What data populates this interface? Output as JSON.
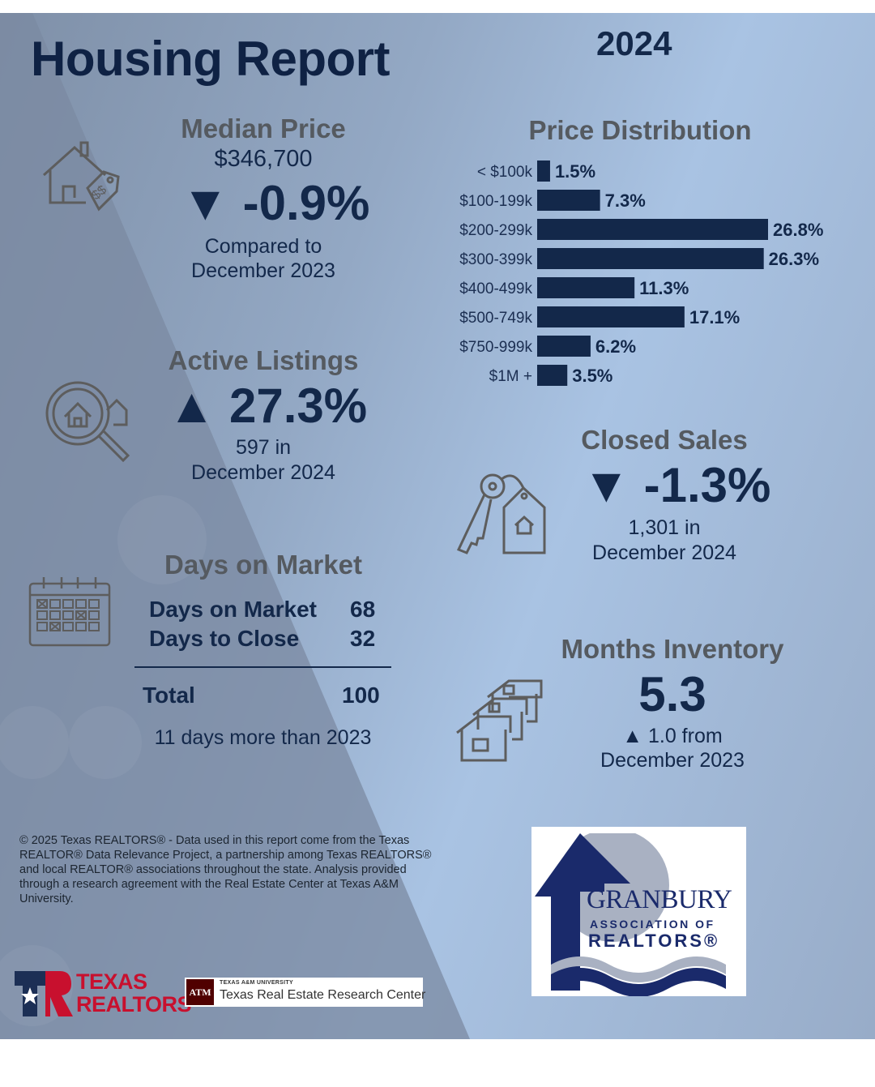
{
  "header": {
    "title": "Housing Report",
    "year": "2024"
  },
  "median_price": {
    "heading": "Median Price",
    "value": "$346,700",
    "arrow": "▼",
    "change": "-0.9%",
    "note_line1": "Compared to",
    "note_line2": "December 2023",
    "icon": "house-price-tag-icon"
  },
  "active_listings": {
    "heading": "Active Listings",
    "arrow": "▲",
    "change": "27.3%",
    "note_line1": "597 in",
    "note_line2": "December 2024",
    "icon": "magnifier-house-icon"
  },
  "days_on_market": {
    "heading": "Days on Market",
    "rows": [
      {
        "label": "Days on Market",
        "value": "68"
      },
      {
        "label": "Days to Close",
        "value": "32"
      }
    ],
    "total_label": "Total",
    "total_value": "100",
    "note": "11 days more than 2023",
    "icon": "calendar-icon"
  },
  "closed_sales": {
    "heading": "Closed Sales",
    "arrow": "▼",
    "change": "-1.3%",
    "note_line1": "1,301 in",
    "note_line2": "December 2024",
    "icon": "key-house-tag-icon"
  },
  "months_inventory": {
    "heading": "Months Inventory",
    "value": "5.3",
    "note_line1": "▲ 1.0 from",
    "note_line2": "December 2023",
    "icon": "stacked-houses-icon"
  },
  "chart_data": {
    "type": "bar",
    "orientation": "horizontal",
    "title": "Price Distribution",
    "categories": [
      "< $100k",
      "$100-199k",
      "$200-299k",
      "$300-399k",
      "$400-499k",
      "$500-749k",
      "$750-999k",
      "$1M +"
    ],
    "values": [
      1.5,
      7.3,
      26.8,
      26.3,
      11.3,
      17.1,
      6.2,
      3.5
    ],
    "value_labels": [
      "1.5%",
      "7.3%",
      "26.8%",
      "26.3%",
      "11.3%",
      "17.1%",
      "6.2%",
      "3.5%"
    ],
    "unit": "%",
    "bar_color": "#13284a",
    "grid": false
  },
  "footer": {
    "copyright": "© 2025 Texas REALTORS® - Data used in this report come from the Texas REALTOR® Data Relevance Project, a partnership among Texas REALTORS® and local REALTOR® associations throughout the state. Analysis provided through a research agreement with the Real Estate Center at Texas A&M University."
  },
  "logos": {
    "texas_realtors_line1": "TEXAS",
    "texas_realtors_line2": "REALTORS",
    "tamu_small": "TEXAS A&M UNIVERSITY",
    "tamu_big": "Texas Real Estate Research Center",
    "tamu_mark": "ATM",
    "granbury_line1": "GRANBURY",
    "granbury_line2": "ASSOCIATION OF",
    "granbury_line3": "REALTORS®"
  },
  "colors": {
    "navy": "#13284a",
    "heading_gray": "#555a60",
    "icon_gray": "#5d5d5d",
    "red": "#c8102e",
    "maroon": "#500000"
  }
}
